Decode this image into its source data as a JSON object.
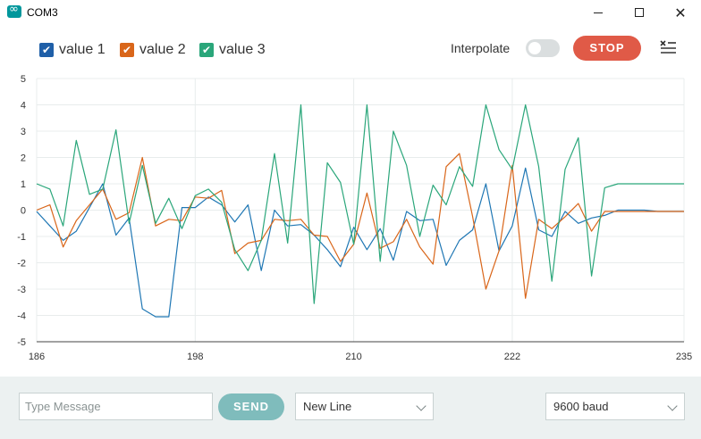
{
  "window": {
    "title": "COM3",
    "close_glyph": "✕"
  },
  "legend": [
    {
      "label": "value 1",
      "color": "#1f77b4"
    },
    {
      "label": "value 2",
      "color": "#d9661a"
    },
    {
      "label": "value 3",
      "color": "#2aa67a"
    }
  ],
  "checkmark": "✔",
  "toolbar": {
    "interpolate_label": "Interpolate",
    "interpolate_on": false,
    "stop_label": "STOP",
    "clear_icon": "clear-output-icon"
  },
  "chart_data": {
    "type": "line",
    "xlim": [
      186,
      235
    ],
    "ylim": [
      -5,
      5
    ],
    "xticks": [
      186,
      198,
      210,
      222,
      235
    ],
    "yticks": [
      -5,
      -4,
      -3,
      -2,
      -1,
      0,
      1,
      2,
      3,
      4,
      5
    ],
    "grid": true,
    "series": [
      {
        "name": "value 1",
        "color": "#1f77b4",
        "x": [
          186,
          187,
          188,
          189,
          190,
          191,
          192,
          193,
          194,
          195,
          196,
          197,
          198,
          199,
          200,
          201,
          202,
          203,
          204,
          205,
          206,
          207,
          208,
          209,
          210,
          211,
          212,
          213,
          214,
          215,
          216,
          217,
          218,
          219,
          220,
          221,
          222,
          223,
          224,
          225,
          226,
          227,
          228,
          229,
          230,
          231,
          232,
          233,
          234,
          235
        ],
        "y": [
          -0.05,
          -0.6,
          -1.15,
          -0.8,
          0.1,
          1.0,
          -0.95,
          -0.3,
          -3.75,
          -4.05,
          -4.05,
          0.1,
          0.1,
          0.5,
          0.2,
          -0.45,
          0.2,
          -2.3,
          0.0,
          -0.6,
          -0.55,
          -0.95,
          -1.5,
          -2.15,
          -0.65,
          -1.5,
          -0.7,
          -1.9,
          -0.05,
          -0.4,
          -0.35,
          -2.1,
          -1.15,
          -0.75,
          1.0,
          -1.55,
          -0.6,
          1.6,
          -0.75,
          -1.0,
          -0.05,
          -0.5,
          -0.3,
          -0.2,
          0.0,
          0.0,
          0.0,
          -0.05,
          -0.05,
          -0.05
        ]
      },
      {
        "name": "value 2",
        "color": "#d9661a",
        "x": [
          186,
          187,
          188,
          189,
          190,
          191,
          192,
          193,
          194,
          195,
          196,
          197,
          198,
          199,
          200,
          201,
          202,
          203,
          204,
          205,
          206,
          207,
          208,
          209,
          210,
          211,
          212,
          213,
          214,
          215,
          216,
          217,
          218,
          219,
          220,
          221,
          222,
          223,
          224,
          225,
          226,
          227,
          228,
          229,
          230,
          231,
          232,
          233,
          234,
          235
        ],
        "y": [
          0.0,
          0.2,
          -1.4,
          -0.4,
          0.2,
          0.8,
          -0.35,
          -0.1,
          2.0,
          -0.6,
          -0.35,
          -0.4,
          0.5,
          0.45,
          0.75,
          -1.65,
          -1.25,
          -1.15,
          -0.35,
          -0.4,
          -0.35,
          -0.95,
          -1.0,
          -1.95,
          -1.3,
          0.65,
          -1.45,
          -1.2,
          -0.35,
          -1.4,
          -2.05,
          1.65,
          2.15,
          -0.25,
          -3.0,
          -1.55,
          1.7,
          -3.35,
          -0.35,
          -0.7,
          -0.25,
          0.25,
          -0.8,
          -0.05,
          -0.05,
          -0.05,
          -0.05,
          -0.05,
          -0.05,
          -0.05
        ]
      },
      {
        "name": "value 3",
        "color": "#2aa67a",
        "x": [
          186,
          187,
          188,
          189,
          190,
          191,
          192,
          193,
          194,
          195,
          196,
          197,
          198,
          199,
          200,
          201,
          202,
          203,
          204,
          205,
          206,
          207,
          208,
          209,
          210,
          211,
          212,
          213,
          214,
          215,
          216,
          217,
          218,
          219,
          220,
          221,
          222,
          223,
          224,
          225,
          226,
          227,
          228,
          229,
          230,
          231,
          232,
          233,
          234,
          235
        ],
        "y": [
          1.0,
          0.8,
          -0.6,
          2.65,
          0.6,
          0.8,
          3.05,
          -0.5,
          1.7,
          -0.5,
          0.45,
          -0.7,
          0.55,
          0.8,
          0.3,
          -1.5,
          -2.3,
          -1.15,
          2.15,
          -1.25,
          4.0,
          -3.55,
          1.8,
          1.05,
          -1.3,
          4.0,
          -1.95,
          3.0,
          1.7,
          -1.0,
          0.95,
          0.2,
          1.65,
          0.9,
          4.0,
          2.3,
          1.55,
          4.0,
          1.65,
          -2.7,
          1.55,
          2.75,
          -2.5,
          0.85,
          1.0,
          1.0,
          1.0,
          1.0,
          1.0,
          1.0
        ]
      }
    ]
  },
  "bottom": {
    "message_placeholder": "Type Message",
    "send_label": "SEND",
    "line_ending": "New Line",
    "baud": "9600 baud"
  }
}
